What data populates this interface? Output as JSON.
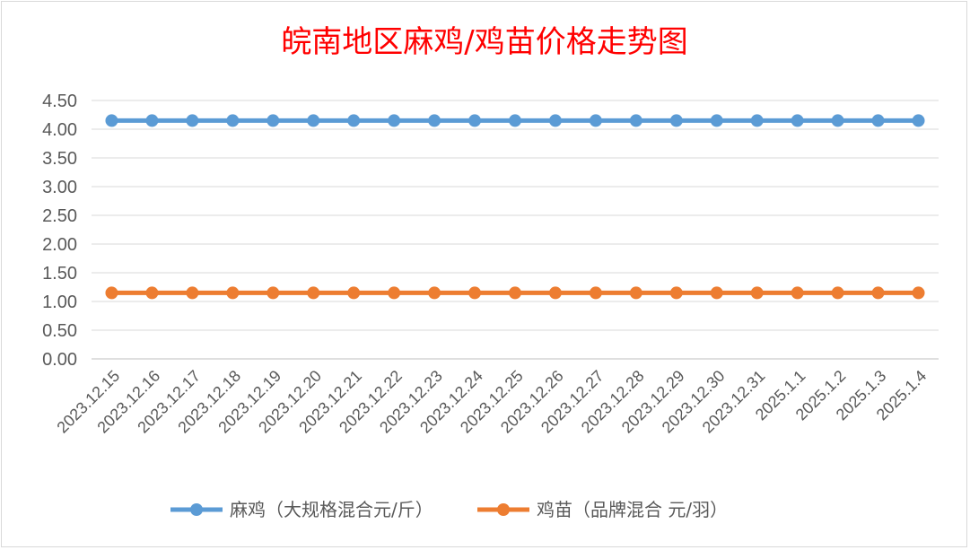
{
  "chart_data": {
    "type": "line",
    "title": "皖南地区麻鸡/鸡苗价格走势图",
    "categories": [
      "2023.12.15",
      "2023.12.16",
      "2023.12.17",
      "2023.12.18",
      "2023.12.19",
      "2023.12.20",
      "2023.12.21",
      "2023.12.22",
      "2023.12.23",
      "2023.12.24",
      "2023.12.25",
      "2023.12.26",
      "2023.12.27",
      "2023.12.28",
      "2023.12.29",
      "2023.12.30",
      "2023.12.31",
      "2025.1.1",
      "2025.1.2",
      "2025.1.3",
      "2025.1.4"
    ],
    "y_ticks": [
      "0.00",
      "0.50",
      "1.00",
      "1.50",
      "2.00",
      "2.50",
      "3.00",
      "3.50",
      "4.00",
      "4.50"
    ],
    "ylim": [
      0,
      4.5
    ],
    "grid": true,
    "legend_position": "bottom",
    "series": [
      {
        "name": "麻鸡（大规格混合元/斤）",
        "color": "#5b9bd5",
        "values": [
          4.15,
          4.15,
          4.15,
          4.15,
          4.15,
          4.15,
          4.15,
          4.15,
          4.15,
          4.15,
          4.15,
          4.15,
          4.15,
          4.15,
          4.15,
          4.15,
          4.15,
          4.15,
          4.15,
          4.15,
          4.15
        ]
      },
      {
        "name": "鸡苗（品牌混合 元/羽）",
        "color": "#ed7d31",
        "values": [
          1.15,
          1.15,
          1.15,
          1.15,
          1.15,
          1.15,
          1.15,
          1.15,
          1.15,
          1.15,
          1.15,
          1.15,
          1.15,
          1.15,
          1.15,
          1.15,
          1.15,
          1.15,
          1.15,
          1.15,
          1.15
        ]
      }
    ]
  }
}
